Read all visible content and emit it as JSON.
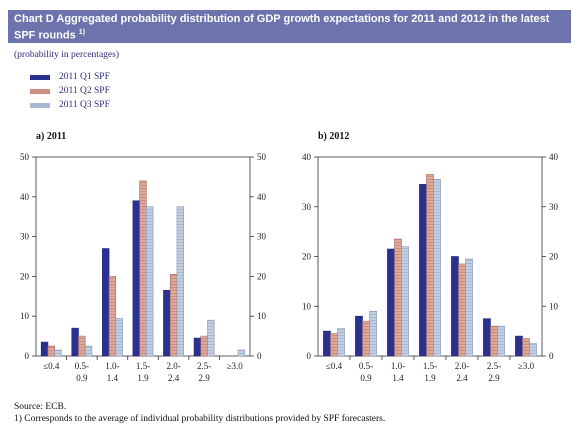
{
  "title": "Chart D Aggregated probability distribution of GDP growth expectations for 2011 and 2012 in the latest SPF rounds",
  "title_footnote": "1)",
  "subtitle": "(probability in percentages)",
  "legend": [
    {
      "label": "2011 Q1 SPF",
      "color": "#2b3192"
    },
    {
      "label": "2011 Q2 SPF",
      "color": "#cc8f7f"
    },
    {
      "label": "2011 Q3 SPF",
      "color": "#a9b8d2"
    }
  ],
  "chart_data": [
    {
      "type": "bar",
      "panel_label": "a) 2011",
      "categories": [
        "≤0.4",
        "0.5-0.9",
        "1.0-1.4",
        "1.5-1.9",
        "2.0-2.4",
        "2.5-2.9",
        "≥3.0"
      ],
      "category_lines": [
        [
          "≤0.4"
        ],
        [
          "0.5-",
          "0.9"
        ],
        [
          "1.0-",
          "1.4"
        ],
        [
          "1.5-",
          "1.9"
        ],
        [
          "2.0-",
          "2.4"
        ],
        [
          "2.5-",
          "2.9"
        ],
        [
          "≥3.0"
        ]
      ],
      "series": [
        {
          "name": "2011 Q1 SPF",
          "values": [
            3.5,
            7,
            27,
            39,
            16.5,
            4.5,
            0
          ]
        },
        {
          "name": "2011 Q2 SPF",
          "values": [
            2.5,
            5,
            20,
            44,
            20.5,
            5,
            0
          ]
        },
        {
          "name": "2011 Q3 SPF",
          "values": [
            1.5,
            2.5,
            9.5,
            37.5,
            37.5,
            9,
            1.5
          ]
        }
      ],
      "ylim": [
        0,
        50
      ],
      "yticks": [
        0,
        10,
        20,
        30,
        40,
        50
      ],
      "grid": false
    },
    {
      "type": "bar",
      "panel_label": "b) 2012",
      "categories": [
        "≤0.4",
        "0.5-0.9",
        "1.0-1.4",
        "1.5-1.9",
        "2.0-2.4",
        "2.5-2.9",
        "≥3.0"
      ],
      "category_lines": [
        [
          "≤0.4"
        ],
        [
          "0.5-",
          "0.9"
        ],
        [
          "1.0-",
          "1.4"
        ],
        [
          "1.5-",
          "1.9"
        ],
        [
          "2.0-",
          "2.4"
        ],
        [
          "2.5-",
          "2.9"
        ],
        [
          "≥3.0"
        ]
      ],
      "series": [
        {
          "name": "2011 Q1 SPF",
          "values": [
            5,
            8,
            21.5,
            34.5,
            20,
            7.5,
            4
          ]
        },
        {
          "name": "2011 Q2 SPF",
          "values": [
            4.5,
            7,
            23.5,
            36.5,
            18.5,
            6,
            3.5
          ]
        },
        {
          "name": "2011 Q3 SPF",
          "values": [
            5.5,
            9,
            22,
            35.5,
            19.5,
            6,
            2.5
          ]
        }
      ],
      "ylim": [
        0,
        40
      ],
      "yticks": [
        0,
        10,
        20,
        30,
        40
      ],
      "grid": false
    }
  ],
  "source": "Source: ECB.",
  "footnote": "1) Corresponds to the average of individual probability distributions provided by SPF forecasters."
}
